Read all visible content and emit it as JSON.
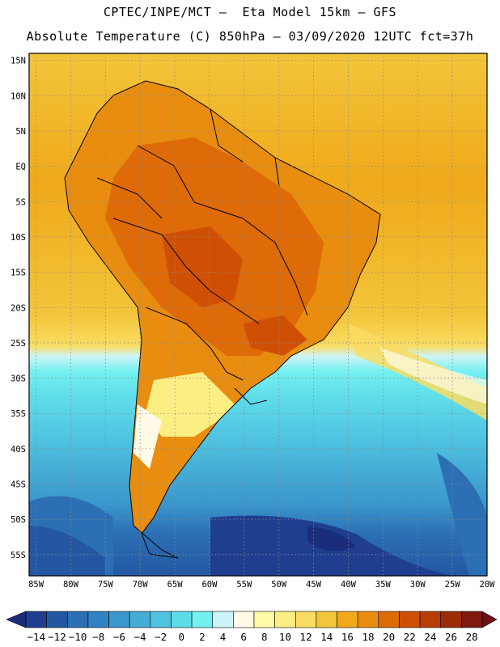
{
  "title": {
    "line1": "CPTEC/INPE/MCT –  Eta Model 15km – GFS",
    "line2": "Absolute Temperature (C) 850hPa – 03/09/2020 12UTC fct=37h"
  },
  "map": {
    "latitude_labels": [
      "15N",
      "10N",
      "5N",
      "EQ",
      "5S",
      "10S",
      "15S",
      "20S",
      "25S",
      "30S",
      "35S",
      "40S",
      "45S",
      "50S",
      "55S"
    ],
    "longitude_labels": [
      "85W",
      "80W",
      "75W",
      "70W",
      "65W",
      "60W",
      "55W",
      "50W",
      "45W",
      "40W",
      "35W",
      "30W",
      "25W",
      "20W"
    ],
    "lat_range": [
      16,
      -58
    ],
    "lon_range": [
      -86,
      -20
    ]
  },
  "colorbar": {
    "ticks": [
      "-14",
      "-12",
      "-10",
      "-8",
      "-6",
      "-4",
      "-2",
      "0",
      "2",
      "4",
      "6",
      "8",
      "10",
      "12",
      "14",
      "16",
      "18",
      "20",
      "22",
      "24",
      "26",
      "28"
    ],
    "colors": [
      "#1f3e8f",
      "#2457a3",
      "#2b6fb5",
      "#3184c2",
      "#3b98cc",
      "#45acd6",
      "#4fc3e0",
      "#5fdcea",
      "#73f0f0",
      "#cdf4f8",
      "#fffbe6",
      "#fffaa8",
      "#fdee84",
      "#f9dc62",
      "#f3c53a",
      "#f0a91a",
      "#e88d10",
      "#de6a08",
      "#cf5005",
      "#b63e04",
      "#9c2c08",
      "#7e1a0e"
    ],
    "low_arrow_color": "#1b2c7a",
    "high_arrow_color": "#6e0f16"
  }
}
